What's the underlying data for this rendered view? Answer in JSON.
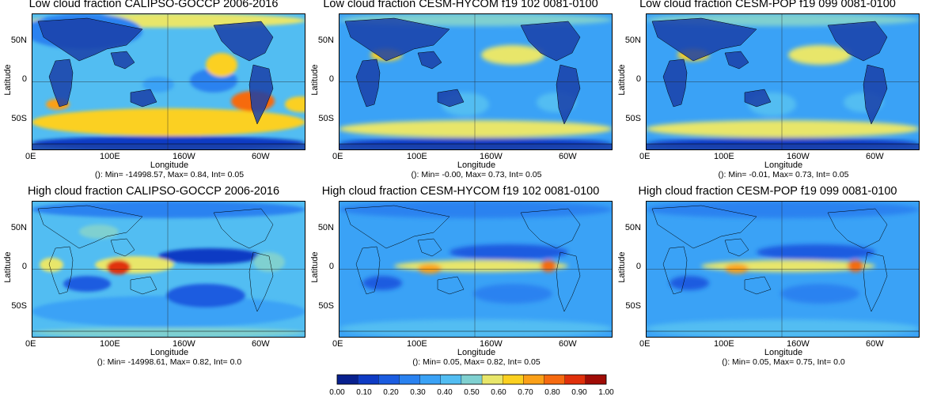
{
  "colors": {
    "land": "#1a3fa8",
    "scale": [
      "#08208e",
      "#0f3bc4",
      "#1b5ce0",
      "#2a82f0",
      "#3aa2f6",
      "#52bdf2",
      "#7fd0d0",
      "#e8e66a",
      "#fbd020",
      "#fba018",
      "#f66a10",
      "#e0300b",
      "#a00c06"
    ]
  },
  "colorbar": {
    "ticks": [
      "0.00",
      "0.10",
      "0.20",
      "0.30",
      "0.40",
      "0.50",
      "0.60",
      "0.70",
      "0.80",
      "0.90",
      "1.00"
    ]
  },
  "axes": {
    "ylabel": "Latitude",
    "xlabel": "Longitude",
    "yticks": [
      "50N",
      "0",
      "50S"
    ],
    "xticks": [
      "0E",
      "100E",
      "160W",
      "60W"
    ]
  },
  "panels": [
    {
      "title": "Low cloud fraction CALIPSO-GOCCP 2006-2016",
      "stats": "(): Min= -14998.57, Max= 0.84, Int= 0.05",
      "kind": "low_obs"
    },
    {
      "title": "Low cloud fraction CESM-HYCOM f19 102 0081-0100",
      "stats": "(): Min= -0.00, Max= 0.73, Int= 0.05",
      "kind": "low_mod"
    },
    {
      "title": "Low cloud fraction CESM-POP f19 099 0081-0100",
      "stats": "(): Min= -0.01, Max= 0.73, Int= 0.05",
      "kind": "low_mod"
    },
    {
      "title": "High cloud fraction CALIPSO-GOCCP 2006-2016",
      "stats": "(): Min= -14998.61, Max= 0.82, Int= 0.0",
      "kind": "high_obs"
    },
    {
      "title": "High cloud fraction CESM-HYCOM f19 102 0081-0100",
      "stats": "(): Min= 0.05, Max= 0.82, Int= 0.05",
      "kind": "high_mod"
    },
    {
      "title": "High cloud fraction CESM-POP f19 099 0081-0100",
      "stats": "(): Min= 0.05, Max= 0.75, Int= 0.0",
      "kind": "high_mod"
    }
  ],
  "chart_data": {
    "type": "heatmap",
    "x_ticks": [
      "0E",
      "100E",
      "160W",
      "60W"
    ],
    "y_ticks": [
      "50N",
      "0",
      "50S"
    ],
    "xlabel": "Longitude",
    "ylabel": "Latitude",
    "color_range": [
      0.0,
      1.0
    ],
    "colorbar_ticks": [
      0.0,
      0.1,
      0.2,
      0.3,
      0.4,
      0.5,
      0.6,
      0.7,
      0.8,
      0.9,
      1.0
    ],
    "maps": [
      {
        "title": "Low cloud fraction CALIPSO-GOCCP 2006-2016",
        "min": -14998.57,
        "max": 0.84,
        "int": 0.05
      },
      {
        "title": "Low cloud fraction CESM-HYCOM f19 102 0081-0100",
        "min": -0.0,
        "max": 0.73,
        "int": 0.05
      },
      {
        "title": "Low cloud fraction CESM-POP f19 099 0081-0100",
        "min": -0.01,
        "max": 0.73,
        "int": 0.05
      },
      {
        "title": "High cloud fraction CALIPSO-GOCCP 2006-2016",
        "min": -14998.61,
        "max": 0.82,
        "int": 0.0
      },
      {
        "title": "High cloud fraction CESM-HYCOM f19 102 0081-0100",
        "min": 0.05,
        "max": 0.82,
        "int": 0.05
      },
      {
        "title": "High cloud fraction CESM-POP f19 099 0081-0100",
        "min": 0.05,
        "max": 0.75,
        "int": 0.0
      }
    ]
  }
}
